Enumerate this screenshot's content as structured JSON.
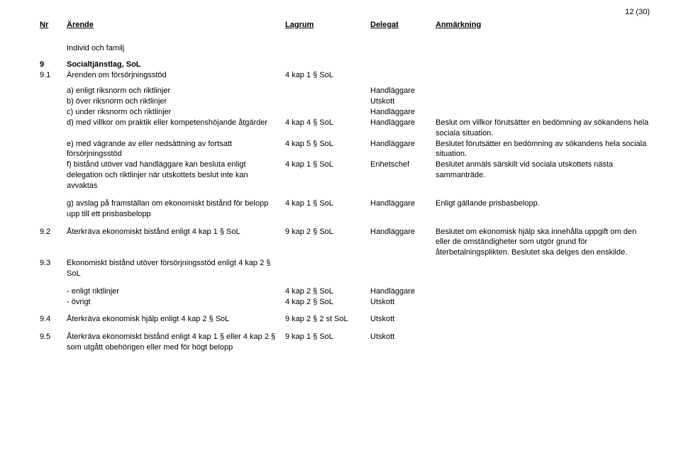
{
  "page_number": "12 (30)",
  "headers": {
    "nr": "Nr",
    "arende": "Ärende",
    "lagrum": "Lagrum",
    "delegat": "Delegat",
    "anmarkning": "Anmärkning"
  },
  "section_title": "Individ och familj",
  "r9": {
    "nr": "9",
    "arende": "Socialtjänstlag, SoL"
  },
  "r9_1": {
    "nr": "9.1",
    "arende": "Ärenden om försörjningsstöd",
    "lagrum": "4 kap 1 § SoL"
  },
  "r_a": {
    "arende": "a) enligt riksnorm och riktlinjer",
    "delegat": "Handläggare"
  },
  "r_b": {
    "arende": "b) över riksnorm och riktlinjer",
    "delegat": "Utskott"
  },
  "r_c": {
    "arende": "c) under riksnorm och riktlinjer",
    "delegat": "Handläggare"
  },
  "r_d": {
    "arende": "d) med villkor om praktik eller kompetenshöjande åtgärder",
    "lagrum": "4 kap 4 § SoL",
    "delegat": "Handläggare",
    "anm": "Beslut om villkor förutsätter en bedömning av sökandens hela sociala situation."
  },
  "r_e": {
    "arende": "e) med vägrande av eller nedsättning av fortsatt försörjningsstöd",
    "lagrum": "4 kap 5 § SoL",
    "delegat": "Handläggare",
    "anm": "Beslutet förutsätter en bedömning av sökandens hela sociala situation."
  },
  "r_f": {
    "arende": "f) bistånd utöver vad handläggare kan besluta enligt delegation och riktlinjer när utskottets beslut inte kan avvaktas",
    "lagrum": "4 kap 1 § SoL",
    "delegat": "Enhetschef",
    "anm": "Beslutet anmäls särskilt vid sociala utskottets nästa sammanträde."
  },
  "r_g": {
    "arende": "g) avslag på framställan om ekonomiskt bistånd för belopp upp till ett prisbasbelopp",
    "lagrum": "4 kap 1 § SoL",
    "delegat": "Handläggare",
    "anm": "Enligt gällande prisbasbelopp."
  },
  "r9_2": {
    "nr": "9.2",
    "arende": "Återkräva ekonomiskt bistånd enligt 4 kap 1 § SoL",
    "lagrum": "9 kap 2 § SoL",
    "delegat": "Handläggare",
    "anm": "Beslutet om ekonomisk hjälp ska innehålla uppgift om den eller de omständigheter som utgör grund för återbetalningsplikten. Beslutet ska delges den enskilde."
  },
  "r9_3": {
    "nr": "9.3",
    "arende": "Ekonomiskt bistånd utöver försörjningsstöd enligt 4 kap 2 § SoL"
  },
  "r9_3a": {
    "arende": "-  enligt riktlinjer",
    "lagrum": "4 kap 2 § SoL",
    "delegat": "Handläggare"
  },
  "r9_3b": {
    "arende": "-  övrigt",
    "lagrum": "4 kap 2 § SoL",
    "delegat": "Utskott"
  },
  "r9_4": {
    "nr": "9.4",
    "arende": "Återkräva ekonomisk hjälp enligt 4 kap 2 § SoL",
    "lagrum": "9 kap 2 § 2 st SoL",
    "delegat": "Utskott"
  },
  "r9_5": {
    "nr": "9.5",
    "arende": "Återkräva ekonomiskt bistånd enligt 4 kap 1 § eller 4 kap 2 § som utgått obehörigen eller med för högt belopp",
    "lagrum": "9 kap 1 § SoL",
    "delegat": "Utskott"
  }
}
